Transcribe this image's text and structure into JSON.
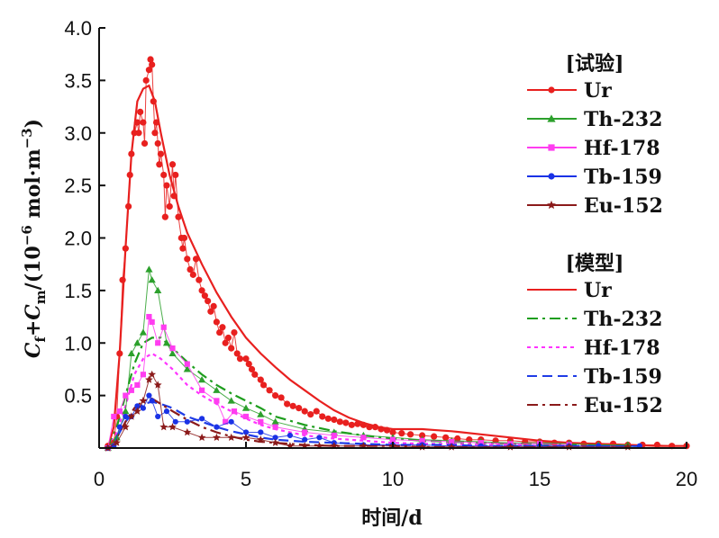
{
  "chart_data": {
    "type": "line",
    "xlabel": "时间/d",
    "ylabel": "Cf+Cm/(10⁻⁶ mol·m⁻³)",
    "ylabel_parts": {
      "c1": "C",
      "s1": "f",
      "plus": "+",
      "c2": "C",
      "s2": "m",
      "unit": "/(10",
      "exp1": "−6",
      "unit2": " mol·m",
      "exp2": "−3",
      "close": ")"
    },
    "xlim": [
      0,
      20
    ],
    "ylim": [
      0,
      4.0
    ],
    "xticks": [
      "0",
      "5",
      "10",
      "15",
      "20"
    ],
    "yticks": [
      "0.5",
      "1.0",
      "1.5",
      "2.0",
      "2.5",
      "3.0",
      "3.5",
      "4.0"
    ],
    "legend_groups": [
      {
        "title": "[试验]",
        "entries": [
          {
            "name": "Ur",
            "color": "#e8201f",
            "marker": "circle",
            "line": "solid"
          },
          {
            "name": "Th-232",
            "color": "#2ca02c",
            "marker": "triangle",
            "line": "solid"
          },
          {
            "name": "Hf-178",
            "color": "#ff3df0",
            "marker": "square",
            "line": "solid"
          },
          {
            "name": "Tb-159",
            "color": "#1a32e6",
            "marker": "circle",
            "line": "solid"
          },
          {
            "name": "Eu-152",
            "color": "#8b1a1a",
            "marker": "star",
            "line": "solid"
          }
        ]
      },
      {
        "title": "[模型]",
        "entries": [
          {
            "name": "Ur",
            "color": "#e8201f",
            "line": "solid"
          },
          {
            "name": "Th-232",
            "color": "#1e9e1e",
            "line": "dashdot"
          },
          {
            "name": "Hf-178",
            "color": "#ff33ff",
            "line": "dotted"
          },
          {
            "name": "Tb-159",
            "color": "#1f3ce6",
            "line": "dashed"
          },
          {
            "name": "Eu-152",
            "color": "#8b1a1a",
            "line": "dashdot"
          }
        ]
      }
    ],
    "experimental_series": [
      {
        "name": "Ur",
        "color": "#e8201f",
        "marker": "circle",
        "x": [
          0.3,
          0.5,
          0.6,
          0.7,
          0.8,
          0.9,
          1.0,
          1.05,
          1.1,
          1.2,
          1.3,
          1.35,
          1.4,
          1.5,
          1.55,
          1.6,
          1.7,
          1.75,
          1.8,
          1.85,
          1.9,
          1.95,
          2.0,
          2.05,
          2.1,
          2.2,
          2.25,
          2.3,
          2.4,
          2.5,
          2.55,
          2.6,
          2.7,
          2.8,
          2.85,
          2.9,
          3.0,
          3.1,
          3.2,
          3.3,
          3.4,
          3.5,
          3.6,
          3.7,
          3.8,
          3.9,
          4.0,
          4.1,
          4.2,
          4.3,
          4.4,
          4.5,
          4.6,
          4.7,
          4.8,
          5.0,
          5.1,
          5.2,
          5.3,
          5.5,
          5.6,
          5.8,
          6.0,
          6.2,
          6.4,
          6.6,
          6.8,
          7.0,
          7.2,
          7.4,
          7.6,
          7.8,
          8.0,
          8.2,
          8.4,
          8.6,
          8.8,
          9.0,
          9.2,
          9.4,
          9.6,
          9.8,
          10.0,
          10.3,
          10.6,
          11.0,
          11.4,
          11.8,
          12.2,
          12.6,
          13.0,
          13.5,
          14.0,
          14.5,
          15.0,
          15.5,
          16.0,
          16.5,
          17.0,
          17.5,
          18.0,
          18.5,
          19.0,
          19.5,
          20.0
        ],
        "y": [
          0.02,
          0.05,
          0.3,
          0.9,
          1.6,
          1.9,
          2.3,
          2.6,
          2.8,
          3.0,
          3.1,
          3.0,
          3.2,
          3.1,
          2.9,
          3.5,
          3.6,
          3.7,
          3.65,
          3.3,
          3.0,
          3.1,
          2.9,
          2.7,
          2.8,
          2.6,
          2.2,
          2.5,
          2.3,
          2.7,
          2.4,
          2.6,
          2.2,
          2.0,
          1.9,
          2.0,
          1.8,
          1.7,
          1.65,
          1.8,
          1.6,
          1.5,
          1.45,
          1.4,
          1.3,
          1.35,
          1.2,
          1.1,
          1.15,
          1.0,
          1.05,
          0.95,
          1.1,
          0.9,
          0.85,
          0.85,
          0.8,
          0.75,
          0.7,
          0.65,
          0.6,
          0.55,
          0.5,
          0.48,
          0.42,
          0.4,
          0.38,
          0.35,
          0.32,
          0.35,
          0.3,
          0.28,
          0.27,
          0.25,
          0.24,
          0.22,
          0.23,
          0.22,
          0.2,
          0.2,
          0.18,
          0.17,
          0.15,
          0.14,
          0.13,
          0.12,
          0.11,
          0.1,
          0.09,
          0.08,
          0.08,
          0.07,
          0.07,
          0.06,
          0.06,
          0.05,
          0.05,
          0.04,
          0.04,
          0.04,
          0.03,
          0.03,
          0.03,
          0.02,
          0.02
        ]
      },
      {
        "name": "Th-232",
        "color": "#2ca02c",
        "marker": "triangle",
        "x": [
          0.3,
          0.6,
          0.9,
          1.1,
          1.3,
          1.5,
          1.7,
          1.8,
          2.0,
          2.3,
          2.5,
          3.0,
          3.5,
          4.0,
          4.5,
          5.0,
          5.5,
          6.0,
          7.0,
          8.0,
          9.0,
          10.0,
          11.0,
          12.0,
          13.0,
          14.0,
          15.0,
          16.0,
          17.0,
          18.0
        ],
        "y": [
          0.0,
          0.1,
          0.35,
          0.9,
          1.0,
          1.1,
          1.7,
          1.6,
          1.5,
          1.0,
          0.9,
          0.75,
          0.65,
          0.55,
          0.45,
          0.38,
          0.32,
          0.25,
          0.18,
          0.15,
          0.12,
          0.1,
          0.08,
          0.07,
          0.06,
          0.05,
          0.05,
          0.04,
          0.03,
          0.03
        ]
      },
      {
        "name": "Hf-178",
        "color": "#ff3df0",
        "marker": "square",
        "x": [
          0.3,
          0.5,
          0.7,
          0.9,
          1.1,
          1.3,
          1.5,
          1.7,
          1.8,
          2.0,
          2.2,
          2.5,
          3.0,
          3.5,
          4.0,
          4.3,
          4.6,
          5.0,
          5.5,
          6.0,
          7.0,
          8.0,
          9.0,
          10.0,
          11.0,
          12.0,
          13.0,
          14.0,
          15.0,
          16.0
        ],
        "y": [
          0.0,
          0.3,
          0.35,
          0.5,
          0.55,
          0.6,
          0.7,
          1.25,
          1.2,
          1.0,
          1.15,
          0.95,
          0.8,
          0.55,
          0.45,
          0.25,
          0.35,
          0.3,
          0.25,
          0.2,
          0.15,
          0.12,
          0.1,
          0.08,
          0.07,
          0.06,
          0.05,
          0.04,
          0.04,
          0.03
        ]
      },
      {
        "name": "Tb-159",
        "color": "#1a32e6",
        "marker": "circle",
        "x": [
          0.3,
          0.5,
          0.7,
          0.9,
          1.1,
          1.3,
          1.5,
          1.7,
          1.8,
          2.0,
          2.3,
          2.6,
          3.0,
          3.5,
          4.0,
          4.5,
          5.0,
          5.5,
          6.0,
          6.5,
          7.0,
          7.5,
          8.0,
          9.0,
          10.0,
          11.0,
          12.0,
          13.0,
          14.0,
          15.0,
          16.0,
          17.0,
          18.4
        ],
        "y": [
          0.0,
          0.02,
          0.2,
          0.3,
          0.3,
          0.4,
          0.38,
          0.5,
          0.45,
          0.3,
          0.35,
          0.25,
          0.25,
          0.28,
          0.2,
          0.25,
          0.15,
          0.15,
          0.1,
          0.12,
          0.08,
          0.1,
          0.05,
          0.03,
          0.03,
          0.03,
          0.02,
          0.02,
          0.02,
          0.02,
          0.02,
          0.02,
          0.02
        ]
      },
      {
        "name": "Eu-152",
        "color": "#8b1a1a",
        "marker": "star",
        "x": [
          0.3,
          0.6,
          0.9,
          1.1,
          1.3,
          1.5,
          1.7,
          1.8,
          2.0,
          2.2,
          2.5,
          3.0,
          3.5,
          4.0,
          4.5,
          5.0,
          5.5,
          6.0,
          6.5,
          7.0,
          7.5,
          8.0,
          9.0,
          10.0,
          11.0,
          12.0,
          14.0,
          16.0,
          18.0
        ],
        "y": [
          0.0,
          0.05,
          0.2,
          0.3,
          0.35,
          0.45,
          0.65,
          0.7,
          0.6,
          0.2,
          0.2,
          0.15,
          0.1,
          0.1,
          0.1,
          0.1,
          0.08,
          0.05,
          0.02,
          0.02,
          0.02,
          0.02,
          0.02,
          0.02,
          0.01,
          0.01,
          0.01,
          0.01,
          0.01
        ]
      }
    ],
    "model_series": [
      {
        "name": "Ur",
        "color": "#e8201f",
        "line": "solid",
        "x": [
          0.3,
          0.5,
          0.7,
          0.9,
          1.1,
          1.3,
          1.5,
          1.7,
          1.9,
          2.1,
          2.4,
          2.7,
          3.0,
          3.5,
          4.0,
          4.5,
          5.0,
          5.5,
          6.0,
          6.5,
          7.0,
          7.5,
          8.0,
          8.5,
          9.0,
          9.5,
          10.0,
          10.5,
          11.0,
          11.5,
          12.0,
          13.0,
          14.0,
          15.0,
          16.0,
          17.0,
          18.0,
          19.0,
          20.0
        ],
        "y": [
          0.0,
          0.2,
          0.9,
          1.9,
          2.8,
          3.3,
          3.42,
          3.45,
          3.3,
          3.0,
          2.6,
          2.3,
          2.05,
          1.75,
          1.48,
          1.25,
          1.05,
          0.9,
          0.77,
          0.65,
          0.55,
          0.45,
          0.36,
          0.29,
          0.24,
          0.2,
          0.18,
          0.18,
          0.18,
          0.17,
          0.16,
          0.13,
          0.1,
          0.07,
          0.05,
          0.04,
          0.03,
          0.02,
          0.02
        ]
      },
      {
        "name": "Th-232",
        "color": "#1e9e1e",
        "line": "dashdot",
        "x": [
          0.3,
          0.6,
          0.9,
          1.2,
          1.5,
          1.8,
          2.1,
          2.5,
          3.0,
          3.5,
          4.0,
          4.5,
          5.0,
          5.5,
          6.0,
          7.0,
          8.0,
          9.0,
          10.0,
          11.0,
          12.0,
          13.0,
          14.0,
          15.0,
          16.0,
          17.0,
          18.0,
          18.4
        ],
        "y": [
          0.0,
          0.2,
          0.5,
          0.8,
          1.0,
          1.05,
          1.05,
          0.95,
          0.82,
          0.7,
          0.6,
          0.52,
          0.45,
          0.38,
          0.3,
          0.22,
          0.16,
          0.12,
          0.09,
          0.07,
          0.06,
          0.05,
          0.04,
          0.04,
          0.03,
          0.03,
          0.02,
          0.02
        ]
      },
      {
        "name": "Hf-178",
        "color": "#ff33ff",
        "line": "dotted",
        "x": [
          0.3,
          0.6,
          0.9,
          1.2,
          1.5,
          1.8,
          2.1,
          2.5,
          3.0,
          3.5,
          4.0,
          4.5,
          5.0,
          5.5,
          6.0,
          7.0,
          8.0,
          9.0,
          10.0,
          11.0,
          12.0,
          13.0,
          14.0,
          15.0,
          16.0
        ],
        "y": [
          0.0,
          0.15,
          0.4,
          0.7,
          0.85,
          0.9,
          0.85,
          0.75,
          0.6,
          0.5,
          0.42,
          0.35,
          0.28,
          0.22,
          0.18,
          0.12,
          0.09,
          0.07,
          0.05,
          0.04,
          0.04,
          0.03,
          0.03,
          0.02,
          0.02
        ]
      },
      {
        "name": "Tb-159",
        "color": "#1f3ce6",
        "line": "dashed",
        "x": [
          0.3,
          0.6,
          0.9,
          1.2,
          1.5,
          1.8,
          2.1,
          2.5,
          3.0,
          3.5,
          4.0,
          4.5,
          5.0,
          5.5,
          6.0,
          7.0,
          8.0,
          9.0,
          10.0,
          11.0,
          12.0,
          13.0,
          14.0,
          15.0,
          16.0,
          17.0,
          18.0,
          18.4
        ],
        "y": [
          0.0,
          0.1,
          0.25,
          0.35,
          0.42,
          0.44,
          0.42,
          0.38,
          0.3,
          0.25,
          0.2,
          0.16,
          0.13,
          0.1,
          0.08,
          0.06,
          0.05,
          0.04,
          0.03,
          0.03,
          0.03,
          0.02,
          0.02,
          0.02,
          0.02,
          0.02,
          0.02,
          0.02
        ]
      },
      {
        "name": "Eu-152",
        "color": "#8b1a1a",
        "line": "dashdot",
        "x": [
          0.3,
          0.6,
          0.9,
          1.2,
          1.5,
          1.8,
          2.1,
          2.5,
          3.0,
          3.5,
          4.0,
          4.5,
          5.0,
          5.5,
          6.0,
          7.0,
          8.0,
          9.0,
          10.0,
          11.0,
          12.0,
          14.0,
          16.0
        ],
        "y": [
          0.0,
          0.1,
          0.25,
          0.38,
          0.45,
          0.47,
          0.42,
          0.35,
          0.27,
          0.2,
          0.15,
          0.11,
          0.08,
          0.06,
          0.05,
          0.03,
          0.02,
          0.02,
          0.02,
          0.01,
          0.01,
          0.01,
          0.01
        ]
      }
    ]
  }
}
